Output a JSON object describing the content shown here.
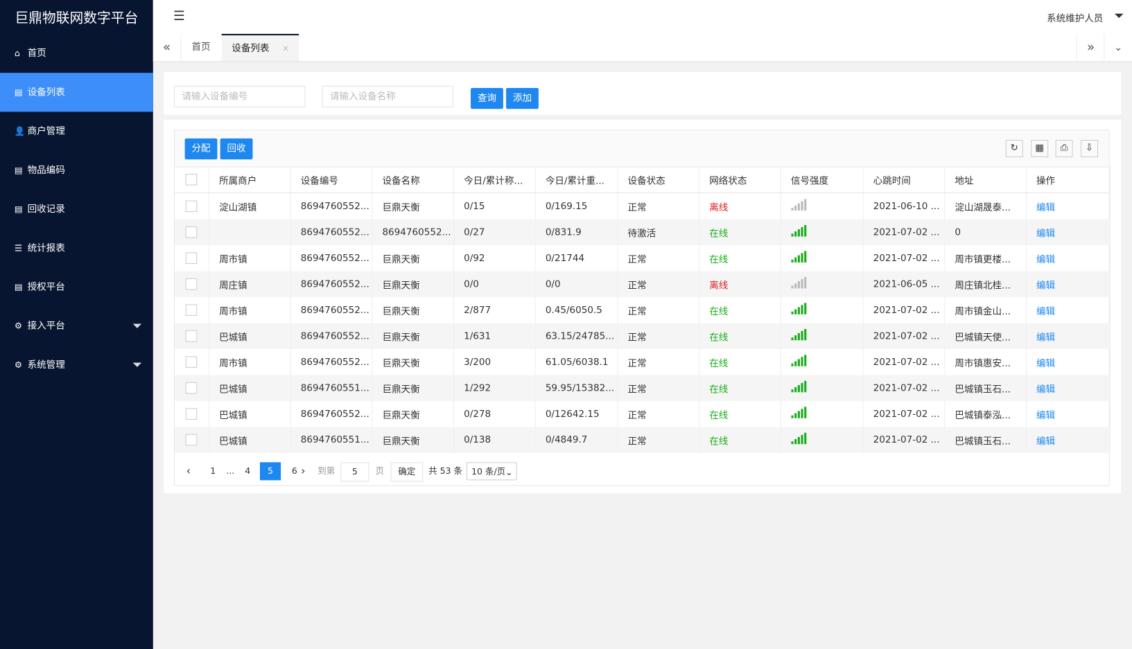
{
  "sidebar": {
    "title": "巨鼎物联网数字平台",
    "menu": [
      {
        "label": "首页",
        "icon": "⌂"
      },
      {
        "label": "设备列表",
        "icon": "▤",
        "active": true
      },
      {
        "label": "商户管理",
        "icon": "👤"
      },
      {
        "label": "物品编码",
        "icon": "▤"
      },
      {
        "label": "回收记录",
        "icon": "▤"
      },
      {
        "label": "统计报表",
        "icon": "☰"
      },
      {
        "label": "授权平台",
        "icon": "▤"
      },
      {
        "label": "接入平台",
        "icon": "⚙",
        "submenu": true
      },
      {
        "label": "系统管理",
        "icon": "⚙",
        "submenu": true
      }
    ]
  },
  "header": {
    "user": "系统维护人员"
  },
  "tabs": [
    {
      "label": "首页"
    },
    {
      "label": "设备列表",
      "active": true
    }
  ],
  "search": {
    "placeholders": [
      "请输入设备编号",
      "请输入设备名称"
    ],
    "buttons": [
      "查询",
      "添加"
    ]
  },
  "toolbar": {
    "buttons": [
      "分配",
      "回收"
    ]
  },
  "table": {
    "columns": [
      "所属商户",
      "设备编号",
      "设备名称",
      "今日/累计称...",
      "今日/累计重...",
      "设备状态",
      "网络状态",
      "信号强度",
      "心跳时间",
      "地址",
      "操作"
    ],
    "rows": [
      {
        "merchant": "淀山湖镇",
        "device_no": "8694760552...",
        "device_name": "巨鼎天衡",
        "count": "0/15",
        "weight": "0/169.15",
        "status": "正常",
        "network": "离线",
        "network_color": "#e02020",
        "signal_color": "#bbbbbb",
        "heartbeat": "2021-06-10 ...",
        "address": "淀山湖晟泰...",
        "action": "编辑"
      },
      {
        "merchant": null,
        "device_no": "8694760552...",
        "device_name": "8694760552...",
        "count": "0/27",
        "weight": "0/831.9",
        "status": "待激活",
        "network": "在线",
        "network_color": "#1aad19",
        "signal_color": "#1aad19",
        "heartbeat": "2021-07-02 ...",
        "address": "0",
        "action": "编辑"
      },
      {
        "merchant": "周市镇",
        "device_no": "8694760552...",
        "device_name": "巨鼎天衡",
        "count": "0/92",
        "weight": "0/21744",
        "status": "正常",
        "network": "在线",
        "network_color": "#1aad19",
        "signal_color": "#1aad19",
        "heartbeat": "2021-07-02 ...",
        "address": "周市镇更楼...",
        "action": "编辑"
      },
      {
        "merchant": "周庄镇",
        "device_no": "8694760552...",
        "device_name": "巨鼎天衡",
        "count": "0/0",
        "weight": "0/0",
        "status": "正常",
        "network": "离线",
        "network_color": "#e02020",
        "signal_color": "#bbbbbb",
        "heartbeat": "2021-06-05 ...",
        "address": "周庄镇北桂...",
        "action": "编辑"
      },
      {
        "merchant": "周市镇",
        "device_no": "8694760552...",
        "device_name": "巨鼎天衡",
        "count": "2/877",
        "weight": "0.45/6050.5",
        "status": "正常",
        "network": "在线",
        "network_color": "#1aad19",
        "signal_color": "#1aad19",
        "heartbeat": "2021-07-02 ...",
        "address": "周市镇金山...",
        "action": "编辑"
      },
      {
        "merchant": "巴城镇",
        "device_no": "8694760552...",
        "device_name": "巨鼎天衡",
        "count": "1/631",
        "weight": "63.15/24785...",
        "status": "正常",
        "network": "在线",
        "network_color": "#1aad19",
        "signal_color": "#1aad19",
        "heartbeat": "2021-07-02 ...",
        "address": "巴城镇天使...",
        "action": "编辑"
      },
      {
        "merchant": "周市镇",
        "device_no": "8694760552...",
        "device_name": "巨鼎天衡",
        "count": "3/200",
        "weight": "61.05/6038.1",
        "status": "正常",
        "network": "在线",
        "network_color": "#1aad19",
        "signal_color": "#1aad19",
        "heartbeat": "2021-07-02 ...",
        "address": "周市镇惠安...",
        "action": "编辑"
      },
      {
        "merchant": "巴城镇",
        "device_no": "8694760551...",
        "device_name": "巨鼎天衡",
        "count": "1/292",
        "weight": "59.95/15382...",
        "status": "正常",
        "network": "在线",
        "network_color": "#1aad19",
        "signal_color": "#1aad19",
        "heartbeat": "2021-07-02 ...",
        "address": "巴城镇玉石...",
        "action": "编辑"
      },
      {
        "merchant": "巴城镇",
        "device_no": "8694760552...",
        "device_name": "巨鼎天衡",
        "count": "0/278",
        "weight": "0/12642.15",
        "status": "正常",
        "network": "在线",
        "network_color": "#1aad19",
        "signal_color": "#1aad19",
        "heartbeat": "2021-07-02 ...",
        "address": "巴城镇泰泓...",
        "action": "编辑"
      },
      {
        "merchant": "巴城镇",
        "device_no": "8694760551...",
        "device_name": "巨鼎天衡",
        "count": "0/138",
        "weight": "0/4849.7",
        "status": "正常",
        "network": "在线",
        "network_color": "#1aad19",
        "signal_color": "#1aad19",
        "heartbeat": "2021-07-02 ...",
        "address": "巴城镇玉石...",
        "action": "编辑"
      }
    ]
  },
  "pagination": {
    "pages": [
      "1",
      "...",
      "4",
      "5",
      "6"
    ],
    "current": "5",
    "goto_label": "到第",
    "goto_value": "5",
    "page_unit": "页",
    "confirm": "确定",
    "total": "共 53 条",
    "page_size": "10 条/页"
  }
}
